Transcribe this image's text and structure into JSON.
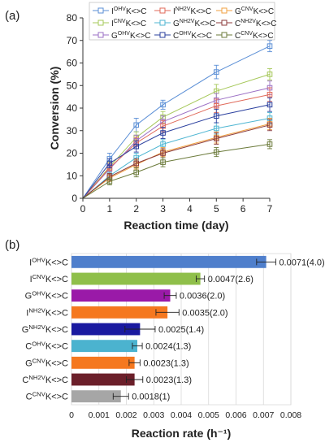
{
  "chart_data": [
    {
      "panel": "(a)",
      "type": "line",
      "xlabel": "Reaction time (day)",
      "ylabel": "Conversion (%)",
      "xlim": [
        0,
        7
      ],
      "ylim": [
        0,
        80
      ],
      "xticks": [
        "0",
        "1",
        "2",
        "3",
        "4",
        "5",
        "6",
        "7"
      ],
      "yticks": [
        "0",
        "10",
        "20",
        "30",
        "40",
        "50",
        "60",
        "70",
        "80"
      ],
      "grid": false,
      "legend": "top",
      "x": [
        0,
        1,
        2,
        3,
        5,
        7
      ],
      "series": [
        {
          "name": "I^OHV K<>C",
          "color": "#5b8fd6",
          "marker": "square",
          "values": [
            0,
            17.5,
            32.5,
            41.5,
            56,
            67.5
          ],
          "errors": [
            0,
            2.5,
            3,
            2,
            3,
            2.5
          ]
        },
        {
          "name": "I^CNV K<>C",
          "color": "#a6c85a",
          "marker": "square",
          "values": [
            0,
            14,
            27,
            36,
            47.5,
            55
          ],
          "errors": [
            0,
            2,
            2.5,
            2.5,
            3,
            2.5
          ]
        },
        {
          "name": "G^OHV K<>C",
          "color": "#9b6fc4",
          "marker": "square",
          "values": [
            0,
            13,
            25.5,
            34,
            43.5,
            49
          ],
          "errors": [
            0,
            2,
            2.5,
            2.5,
            3,
            3
          ]
        },
        {
          "name": "I^NH2V K<>C",
          "color": "#e06a5a",
          "marker": "square",
          "values": [
            0,
            13.5,
            24.5,
            32,
            41,
            46
          ],
          "errors": [
            0,
            2,
            2.5,
            2.5,
            3,
            3
          ]
        },
        {
          "name": "G^NH2V K<>C",
          "color": "#4fb6d2",
          "marker": "square",
          "values": [
            0,
            10,
            18,
            24,
            31,
            35.5
          ],
          "errors": [
            0,
            1.5,
            2,
            2,
            2.5,
            2.5
          ]
        },
        {
          "name": "C^OHV K<>C",
          "color": "#2a3f9e",
          "marker": "square",
          "values": [
            0,
            15.5,
            23,
            29,
            36.5,
            41.5
          ],
          "errors": [
            0,
            2,
            2.5,
            2.5,
            3,
            3
          ]
        },
        {
          "name": "G^CNV K<>C",
          "color": "#f0a040",
          "marker": "square",
          "values": [
            0,
            9,
            15,
            20.5,
            27,
            33
          ],
          "errors": [
            0,
            1.5,
            2,
            2,
            2.5,
            2.5
          ]
        },
        {
          "name": "C^NH2V K<>C",
          "color": "#8b3a3a",
          "marker": "square",
          "values": [
            0,
            9.5,
            15.5,
            20,
            26.5,
            32.5
          ],
          "errors": [
            0,
            1.5,
            2,
            2,
            2.5,
            2.5
          ]
        },
        {
          "name": "C^CNV K<>C",
          "color": "#6b7a3a",
          "marker": "square",
          "values": [
            0,
            7.5,
            11.5,
            16,
            20.5,
            24
          ],
          "errors": [
            0,
            1.5,
            2,
            2,
            2,
            2
          ]
        }
      ]
    },
    {
      "panel": "(b)",
      "type": "bar",
      "orientation": "horizontal",
      "xlabel": "Reaction rate (h⁻¹)",
      "xlim": [
        0,
        0.008
      ],
      "xticks": [
        "0",
        "0.001",
        "0.002",
        "0.003",
        "0.004",
        "0.005",
        "0.006",
        "0.007",
        "0.008"
      ],
      "grid": true,
      "categories": [
        {
          "base": "I",
          "sup": "OHV",
          "tail": "K<>C"
        },
        {
          "base": "I",
          "sup": "CNV",
          "tail": "K<>C"
        },
        {
          "base": "G",
          "sup": "OHV",
          "tail": "K<>C"
        },
        {
          "base": "I",
          "sup": "NH2V",
          "tail": "K<>C"
        },
        {
          "base": "G",
          "sup": "NH2V",
          "tail": "K<>C"
        },
        {
          "base": "C",
          "sup": "OHV",
          "tail": "K<>C"
        },
        {
          "base": "G",
          "sup": "CNV",
          "tail": "K<>C"
        },
        {
          "base": "C",
          "sup": "NH2V",
          "tail": "K<>C"
        },
        {
          "base": "C",
          "sup": "CNV",
          "tail": "K<>C"
        }
      ],
      "values": [
        0.0071,
        0.0047,
        0.0036,
        0.0035,
        0.0025,
        0.0024,
        0.0023,
        0.0023,
        0.0018
      ],
      "errors": [
        0.00035,
        0.00015,
        0.00022,
        0.00042,
        0.00055,
        0.00018,
        0.0002,
        0.0003,
        0.00028
      ],
      "data_labels": [
        "0.0071(4.0)",
        "0.0047(2.6)",
        "0.0036(2.0)",
        "0.0035(2.0)",
        "0.0025(1.4)",
        "0.0024(1.3)",
        "0.0023(1.3)",
        "0.0023(1.3)",
        "0.0018(1)"
      ],
      "colors": [
        "#4f7fcc",
        "#8fbf4a",
        "#9a1aa8",
        "#f5781f",
        "#1a1aa0",
        "#4bb3cf",
        "#f5781f",
        "#6b1f2a",
        "#a6a6a6"
      ]
    }
  ]
}
